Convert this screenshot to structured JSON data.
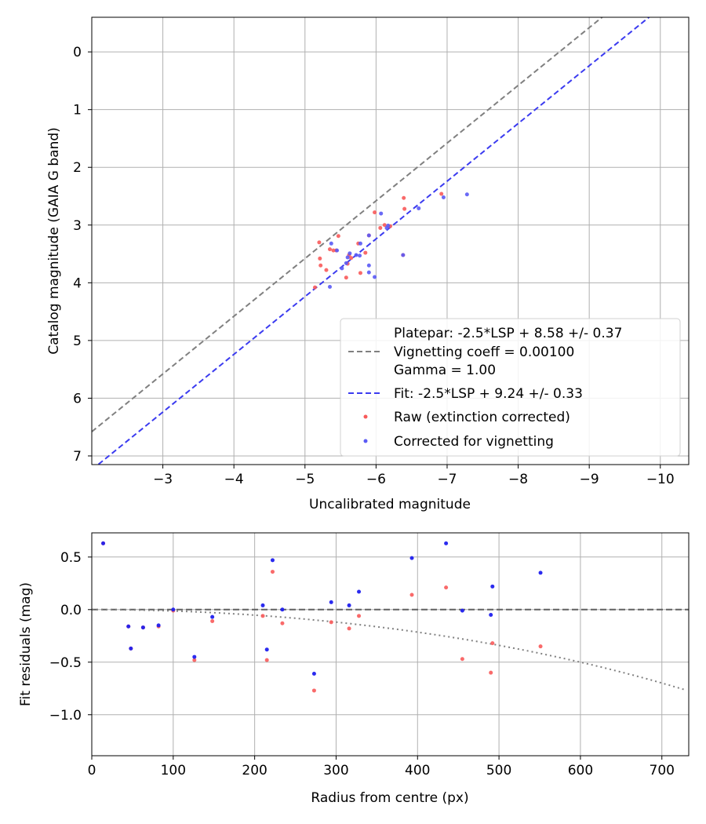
{
  "chart_data": [
    {
      "type": "scatter",
      "xlabel": "Uncalibrated magnitude",
      "ylabel": "Catalog magnitude (GAIA G band)",
      "xlim": [
        -2.0,
        -10.4
      ],
      "ylim": [
        7.15,
        -0.6
      ],
      "xticks": [
        -3,
        -4,
        -5,
        -6,
        -7,
        -8,
        -9,
        -10
      ],
      "xtick_labels": [
        "−3",
        "−4",
        "−5",
        "−6",
        "−7",
        "−8",
        "−9",
        "−10"
      ],
      "yticks": [
        0,
        1,
        2,
        3,
        4,
        5,
        6,
        7
      ],
      "ytick_labels": [
        "0",
        "1",
        "2",
        "3",
        "4",
        "5",
        "6",
        "7"
      ],
      "grid": true,
      "legend_position": "lower-right",
      "legend": [
        {
          "label": "Platepar: -2.5*LSP + 8.58 +/- 0.37",
          "style": "none"
        },
        {
          "label": "Vignetting coeff = 0.00100",
          "style": "dashed",
          "color": "#808080"
        },
        {
          "label": "Gamma = 1.00",
          "style": "none"
        },
        {
          "label": "Fit: -2.5*LSP + 9.24 +/- 0.33",
          "style": "dashed",
          "color": "#3b3bf0"
        },
        {
          "label": "Raw (extinction corrected)",
          "style": "dot",
          "color": "#f85a5a"
        },
        {
          "label": "Corrected for vignetting",
          "style": "dot",
          "color": "#5a5af5"
        }
      ],
      "lines": [
        {
          "name": "platepar",
          "intercept": 8.58,
          "slope": 1,
          "color": "#808080"
        },
        {
          "name": "fit",
          "intercept": 9.24,
          "slope": 1,
          "color": "#3b3bf0"
        }
      ],
      "series": [
        {
          "name": "Raw (extinction corrected)",
          "color": "#f85a5a",
          "points": [
            [
              -5.14,
              4.08
            ],
            [
              -5.2,
              3.3
            ],
            [
              -5.21,
              3.58
            ],
            [
              -5.22,
              3.7
            ],
            [
              -5.3,
              3.78
            ],
            [
              -5.35,
              3.42
            ],
            [
              -5.4,
              3.44
            ],
            [
              -5.44,
              3.44
            ],
            [
              -5.47,
              3.19
            ],
            [
              -5.58,
              3.91
            ],
            [
              -5.6,
              3.67
            ],
            [
              -5.62,
              3.52
            ],
            [
              -5.65,
              3.57
            ],
            [
              -5.75,
              3.32
            ],
            [
              -5.78,
              3.83
            ],
            [
              -5.85,
              3.48
            ],
            [
              -5.9,
              3.18
            ],
            [
              -5.98,
              2.78
            ],
            [
              -6.06,
              3.05
            ],
            [
              -6.12,
              3.0
            ],
            [
              -6.2,
              3.02
            ],
            [
              -6.38,
              3.52
            ],
            [
              -6.39,
              2.53
            ],
            [
              -6.4,
              2.72
            ],
            [
              -6.92,
              2.46
            ]
          ]
        },
        {
          "name": "Corrected for vignetting",
          "color": "#5a5af5",
          "points": [
            [
              -5.35,
              4.07
            ],
            [
              -5.37,
              3.32
            ],
            [
              -5.45,
              3.44
            ],
            [
              -5.52,
              3.75
            ],
            [
              -5.58,
              3.66
            ],
            [
              -5.6,
              3.56
            ],
            [
              -5.63,
              3.49
            ],
            [
              -5.72,
              3.52
            ],
            [
              -5.77,
              3.53
            ],
            [
              -5.78,
              3.32
            ],
            [
              -5.9,
              3.82
            ],
            [
              -5.9,
              3.7
            ],
            [
              -5.9,
              3.18
            ],
            [
              -5.98,
              3.9
            ],
            [
              -6.07,
              2.8
            ],
            [
              -6.15,
              3.05
            ],
            [
              -6.17,
              3.01
            ],
            [
              -6.38,
              3.52
            ],
            [
              -6.6,
              2.71
            ],
            [
              -6.95,
              2.52
            ],
            [
              -7.28,
              2.47
            ]
          ]
        }
      ]
    },
    {
      "type": "scatter",
      "xlabel": "Radius from centre (px)",
      "ylabel": "Fit residuals (mag)",
      "xlim": [
        0,
        733
      ],
      "ylim": [
        -1.39,
        0.73
      ],
      "xticks": [
        0,
        100,
        200,
        300,
        400,
        500,
        600,
        700
      ],
      "xtick_labels": [
        "0",
        "100",
        "200",
        "300",
        "400",
        "500",
        "600",
        "700"
      ],
      "yticks": [
        0.5,
        0.0,
        -0.5,
        -1.0
      ],
      "ytick_labels": [
        "0.5",
        "0.0",
        "−0.5",
        "−1.0"
      ],
      "grid": true,
      "zero_line": 0,
      "vignetting_curve": {
        "coeff": 0.001,
        "gamma": 1.0,
        "color": "#808080"
      },
      "series": [
        {
          "name": "Raw (extinction corrected)",
          "color": "#f85a5a",
          "points": [
            [
              14,
              0.63
            ],
            [
              45,
              -0.16
            ],
            [
              48,
              -0.37
            ],
            [
              63,
              -0.17
            ],
            [
              82,
              -0.16
            ],
            [
              100,
              -0.01
            ],
            [
              126,
              -0.48
            ],
            [
              148,
              -0.11
            ],
            [
              210,
              -0.06
            ],
            [
              215,
              -0.48
            ],
            [
              222,
              0.36
            ],
            [
              234,
              -0.13
            ],
            [
              273,
              -0.77
            ],
            [
              294,
              -0.12
            ],
            [
              316,
              -0.18
            ],
            [
              328,
              -0.06
            ],
            [
              393,
              0.14
            ],
            [
              435,
              0.21
            ],
            [
              455,
              -0.47
            ],
            [
              490,
              -0.6
            ],
            [
              492,
              -0.32
            ],
            [
              551,
              -0.35
            ]
          ]
        },
        {
          "name": "Corrected for vignetting",
          "color": "#2020ee",
          "points": [
            [
              14,
              0.63
            ],
            [
              45,
              -0.16
            ],
            [
              48,
              -0.37
            ],
            [
              63,
              -0.17
            ],
            [
              82,
              -0.15
            ],
            [
              100,
              0.0
            ],
            [
              126,
              -0.45
            ],
            [
              148,
              -0.07
            ],
            [
              210,
              0.04
            ],
            [
              215,
              -0.38
            ],
            [
              222,
              0.47
            ],
            [
              234,
              0.0
            ],
            [
              273,
              -0.61
            ],
            [
              294,
              0.07
            ],
            [
              316,
              0.04
            ],
            [
              328,
              0.17
            ],
            [
              393,
              0.49
            ],
            [
              435,
              0.63
            ],
            [
              455,
              -0.01
            ],
            [
              490,
              -0.05
            ],
            [
              492,
              0.22
            ],
            [
              551,
              0.35
            ]
          ]
        }
      ]
    }
  ]
}
